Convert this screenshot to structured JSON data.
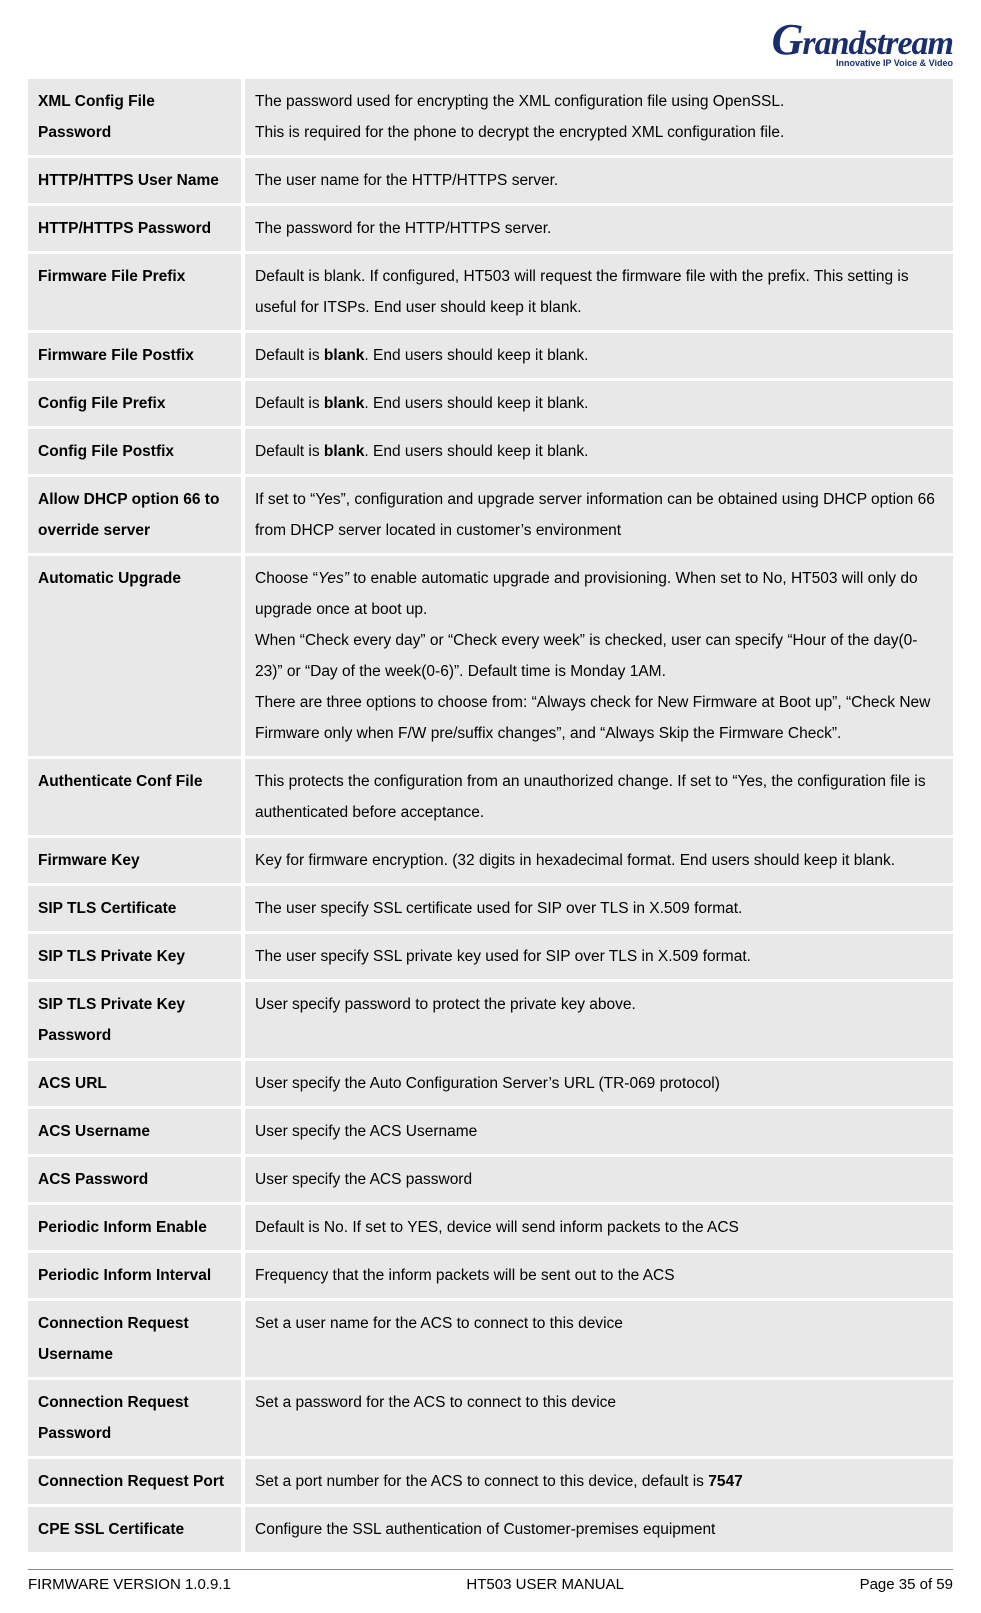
{
  "logo": {
    "brand": "Grandstream",
    "tagline": "Innovative IP Voice & Video"
  },
  "rows": [
    {
      "key": "XML Config File Password",
      "segs": [
        {
          "t": "The password used for encrypting the XML configuration file using OpenSSL."
        },
        {
          "br": 1
        },
        {
          "t": "This is required for the phone to decrypt the encrypted XML configuration file."
        }
      ]
    },
    {
      "key": "HTTP/HTTPS User Name",
      "segs": [
        {
          "t": "The user name for the HTTP/HTTPS server."
        }
      ]
    },
    {
      "key": "HTTP/HTTPS Password",
      "segs": [
        {
          "t": "The password for the HTTP/HTTPS server."
        }
      ]
    },
    {
      "key": "Firmware File Prefix",
      "segs": [
        {
          "t": "Default is blank. If configured, HT503 will request the firmware file with the prefix.  This setting is useful for ITSPs.  End user should keep it blank."
        }
      ]
    },
    {
      "key": "Firmware File Postfix",
      "segs": [
        {
          "t": "Default is "
        },
        {
          "t": "blank",
          "c": "b"
        },
        {
          "t": ". End users should keep it blank."
        }
      ]
    },
    {
      "key": "Config File Prefix",
      "segs": [
        {
          "t": "Default is "
        },
        {
          "t": "blank",
          "c": "b"
        },
        {
          "t": ". End users should keep it blank."
        }
      ]
    },
    {
      "key": "Config File Postfix",
      "segs": [
        {
          "t": "Default is "
        },
        {
          "t": "blank",
          "c": "b"
        },
        {
          "t": ". End users should keep it blank."
        }
      ]
    },
    {
      "key": "Allow DHCP option 66 to override server",
      "segs": [
        {
          "t": "If set to “Yes”, configuration and upgrade server information can be obtained using DHCP option 66 from DHCP server located in customer’s environment"
        }
      ]
    },
    {
      "key": "Automatic Upgrade",
      "segs": [
        {
          "t": "Choose “"
        },
        {
          "t": "Yes” ",
          "c": "i"
        },
        {
          "t": "to enable automatic upgrade and provisioning.  When set to No, HT503 will only do upgrade once at boot up."
        },
        {
          "br": 1
        },
        {
          "t": "When “Check every day” or “Check every week” is checked, user can specify “Hour of the day(0-23)” or “Day of the week(0-6)”. Default time is Monday 1AM."
        },
        {
          "br": 1
        },
        {
          "t": "There are three options to choose from: “Always check for New Firmware at Boot up”, “Check New Firmware only when F/W pre/suffix changes”, and “Always Skip the Firmware Check”."
        }
      ]
    },
    {
      "key": "Authenticate Conf File",
      "segs": [
        {
          "t": "This protects the configuration from an unauthorized change.  If set to “Yes, the configuration file is authenticated before acceptance."
        }
      ]
    },
    {
      "key": "Firmware Key",
      "segs": [
        {
          "t": "Key for firmware encryption. (32 digits in hexadecimal format. End users should keep it blank."
        }
      ]
    },
    {
      "key": "SIP TLS Certificate",
      "segs": [
        {
          "t": "The user specify SSL certificate used for SIP over TLS in X.509 format."
        }
      ]
    },
    {
      "key": "SIP TLS Private Key",
      "segs": [
        {
          "t": "The user specify SSL private key used for SIP over TLS in X.509 format."
        }
      ]
    },
    {
      "key": "SIP TLS Private Key Password",
      "segs": [
        {
          "t": "User specify password to protect the private key above."
        }
      ]
    },
    {
      "key": "ACS URL",
      "segs": [
        {
          "t": "User specify the Auto Configuration Server’s URL (TR-069 protocol)"
        }
      ]
    },
    {
      "key": "ACS Username",
      "segs": [
        {
          "t": "User specify the ACS Username"
        }
      ]
    },
    {
      "key": "ACS Password",
      "segs": [
        {
          "t": "User specify the ACS password"
        }
      ]
    },
    {
      "key": "Periodic Inform Enable",
      "segs": [
        {
          "t": "Default is No. If set to YES, device will send inform packets to the ACS"
        }
      ]
    },
    {
      "key": "Periodic Inform Interval",
      "segs": [
        {
          "t": "Frequency that the inform packets will be sent out to the ACS"
        }
      ]
    },
    {
      "key": "Connection Request Username",
      "segs": [
        {
          "t": "Set a user name for the ACS to connect to this device"
        }
      ]
    },
    {
      "key": "Connection Request Password",
      "segs": [
        {
          "t": "Set a password for the ACS to connect to this device"
        }
      ]
    },
    {
      "key": "Connection Request Port",
      "segs": [
        {
          "t": "Set a port number for the ACS to connect to this device, default is "
        },
        {
          "t": "7547",
          "c": "b"
        }
      ]
    },
    {
      "key": "CPE SSL Certificate",
      "segs": [
        {
          "t": "Configure the SSL authentication of Customer-premises equipment"
        }
      ]
    }
  ],
  "footer": {
    "left": "FIRMWARE VERSION 1.0.9.1",
    "center": "HT503 USER MANUAL",
    "right": "Page 35 of 59"
  }
}
